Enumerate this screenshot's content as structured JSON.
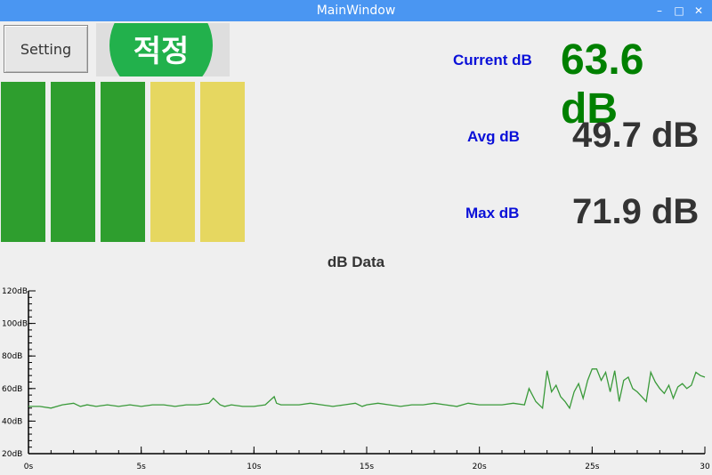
{
  "window": {
    "title": "MainWindow",
    "minimize_glyph": "–",
    "maximize_glyph": "□",
    "close_glyph": "✕"
  },
  "toolbar": {
    "setting_label": "Setting"
  },
  "status": {
    "label": "적정",
    "color": "#22b14c"
  },
  "level_meter": {
    "active_segments": 3,
    "total_segments": 5,
    "segment_colors": [
      "#2e9e2e",
      "#2e9e2e",
      "#2e9e2e",
      "#e6d760",
      "#e6d760"
    ]
  },
  "readings": {
    "current": {
      "label": "Current dB",
      "value": "63.6 dB",
      "color": "#008000"
    },
    "avg": {
      "label": "Avg dB",
      "value": "49.7 dB"
    },
    "max": {
      "label": "Max dB",
      "value": "71.9 dB"
    }
  },
  "chart_data": {
    "type": "line",
    "title": "dB Data",
    "xlim": [
      0,
      30
    ],
    "ylim": [
      20,
      120
    ],
    "x_ticks": [
      {
        "v": 0,
        "label": "0s"
      },
      {
        "v": 5,
        "label": "5s"
      },
      {
        "v": 10,
        "label": "10s"
      },
      {
        "v": 15,
        "label": "15s"
      },
      {
        "v": 20,
        "label": "20s"
      },
      {
        "v": 25,
        "label": "25s"
      },
      {
        "v": 30,
        "label": "30"
      }
    ],
    "y_ticks": [
      {
        "v": 20,
        "label": "20dB"
      },
      {
        "v": 40,
        "label": "40dB"
      },
      {
        "v": 60,
        "label": "60dB"
      },
      {
        "v": 80,
        "label": "80dB"
      },
      {
        "v": 100,
        "label": "100dB"
      },
      {
        "v": 120,
        "label": "120dB"
      }
    ],
    "line_color": "#3a9a3a",
    "series": [
      {
        "x": [
          0,
          0.5,
          1,
          1.5,
          2,
          2.3,
          2.6,
          3,
          3.5,
          4,
          4.5,
          5,
          5.5,
          6,
          6.5,
          7,
          7.5,
          8,
          8.2,
          8.5,
          8.7,
          9,
          9.5,
          10,
          10.5,
          10.9,
          11,
          11.2,
          11.5,
          12,
          12.5,
          13,
          13.5,
          14,
          14.5,
          14.8,
          15,
          15.5,
          16,
          16.5,
          17,
          17.5,
          18,
          18.5,
          19,
          19.5,
          20,
          20.5,
          21,
          21.5,
          22,
          22.2,
          22.5,
          22.8,
          23,
          23.2,
          23.4,
          23.6,
          23.8,
          24,
          24.2,
          24.4,
          24.6,
          24.8,
          25,
          25.2,
          25.4,
          25.6,
          25.8,
          26,
          26.2,
          26.4,
          26.6,
          26.8,
          27,
          27.2,
          27.4,
          27.6,
          27.8,
          28,
          28.2,
          28.4,
          28.6,
          28.8,
          29,
          29.2,
          29.4,
          29.6,
          29.8,
          30
        ],
        "y": [
          49,
          49,
          48,
          50,
          51,
          49,
          50,
          49,
          50,
          49,
          50,
          49,
          50,
          50,
          49,
          50,
          50,
          51,
          54,
          50,
          49,
          50,
          49,
          49,
          50,
          55,
          51,
          50,
          50,
          50,
          51,
          50,
          49,
          50,
          51,
          49,
          50,
          51,
          50,
          49,
          50,
          50,
          51,
          50,
          49,
          51,
          50,
          50,
          50,
          51,
          50,
          60,
          52,
          48,
          71,
          58,
          62,
          55,
          52,
          48,
          58,
          63,
          54,
          65,
          72,
          72,
          65,
          70,
          58,
          71,
          52,
          65,
          67,
          60,
          58,
          55,
          52,
          70,
          64,
          60,
          57,
          62,
          54,
          61,
          63,
          60,
          62,
          70,
          68,
          67
        ]
      }
    ]
  }
}
